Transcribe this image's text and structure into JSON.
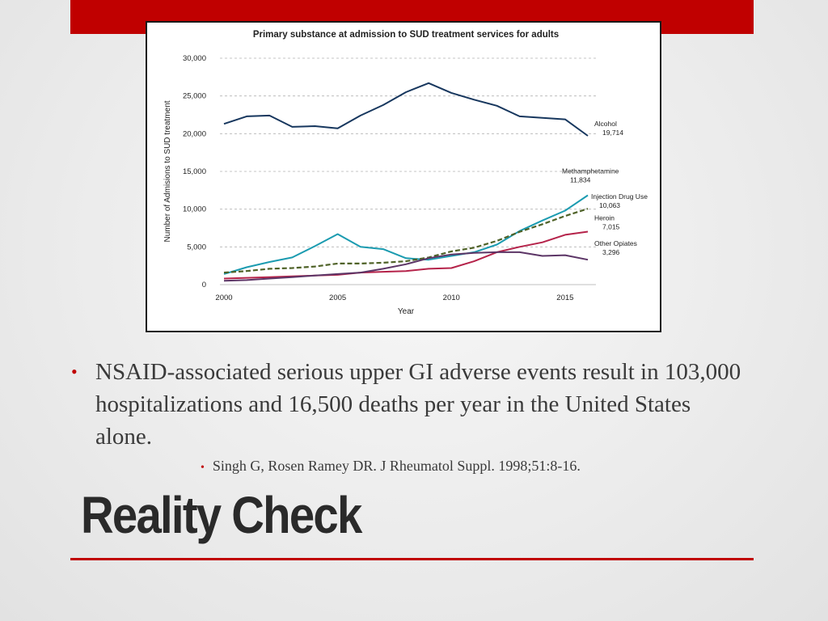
{
  "slide": {
    "bullet": "NSAID-associated serious upper GI adverse events result in 103,000 hospitalizations and 16,500 deaths per year in the United States alone.",
    "citation": "Singh G, Rosen Ramey DR. J Rheumatol Suppl. 1998;51:8-16.",
    "title": "Reality Check",
    "accent_color": "#c00000"
  },
  "chart_data": {
    "type": "line",
    "title": "Primary substance at admission to SUD treatment services for adults",
    "xlabel": "Year",
    "ylabel": "Number of Admisions to SUD treatment",
    "xlim": [
      2000,
      2016
    ],
    "ylim": [
      0,
      30000
    ],
    "x_ticks": [
      "2000",
      "2005",
      "2010",
      "2015"
    ],
    "y_ticks": [
      "0",
      "5,000",
      "10,000",
      "15,000",
      "20,000",
      "25,000",
      "30,000"
    ],
    "grid": true,
    "x": [
      2000,
      2001,
      2002,
      2003,
      2004,
      2005,
      2006,
      2007,
      2008,
      2009,
      2010,
      2011,
      2012,
      2013,
      2014,
      2015,
      2016
    ],
    "series": [
      {
        "name": "Alcohol",
        "end_label": "19,714",
        "color": "#17375e",
        "dashed": false,
        "values": [
          21300,
          22300,
          22400,
          20900,
          21000,
          20700,
          22400,
          23800,
          25500,
          26700,
          25400,
          24500,
          23700,
          22300,
          22100,
          21900,
          19714
        ]
      },
      {
        "name": "Methamphetamine",
        "end_label": "11,834",
        "color": "#1b9bb0",
        "dashed": false,
        "values": [
          1400,
          2300,
          3000,
          3600,
          5100,
          6700,
          5000,
          4700,
          3500,
          3300,
          3800,
          4300,
          5300,
          7100,
          8500,
          9800,
          11834
        ]
      },
      {
        "name": "Injection Drug Use",
        "end_label": "10,063",
        "color": "#4f6228",
        "dashed": true,
        "values": [
          1600,
          1800,
          2100,
          2200,
          2400,
          2800,
          2800,
          2900,
          3100,
          3600,
          4400,
          4900,
          5800,
          7000,
          8000,
          9100,
          10063
        ]
      },
      {
        "name": "Heroin",
        "end_label": "7,015",
        "color": "#b5234a",
        "dashed": false,
        "values": [
          800,
          900,
          1000,
          1100,
          1200,
          1300,
          1600,
          1700,
          1800,
          2100,
          2200,
          3100,
          4300,
          5000,
          5600,
          6600,
          7015
        ]
      },
      {
        "name": "Other Opiates",
        "end_label": "3,296",
        "color": "#5c3566",
        "dashed": false,
        "values": [
          500,
          600,
          800,
          1000,
          1200,
          1400,
          1600,
          2100,
          2700,
          3500,
          4000,
          4200,
          4300,
          4300,
          3800,
          3900,
          3296
        ]
      }
    ]
  }
}
